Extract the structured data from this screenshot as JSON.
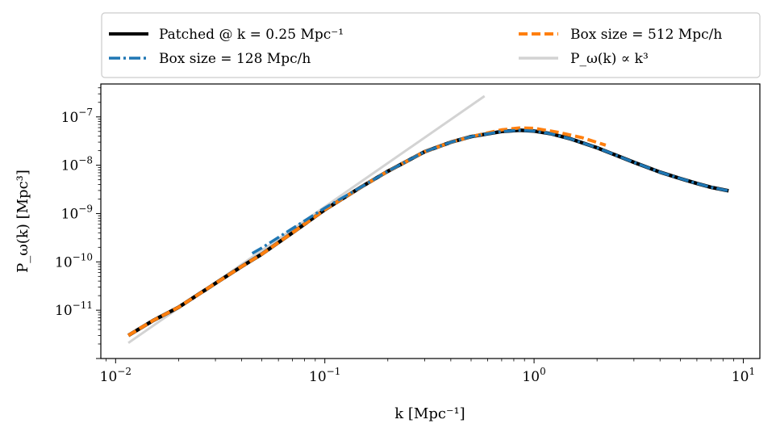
{
  "chart_data": {
    "type": "line",
    "xscale": "log",
    "yscale": "log",
    "xlim": [
      0.0085,
      12
    ],
    "ylim": [
      1e-12,
      4.8e-07
    ],
    "xlabel": "k [Mpc⁻¹]",
    "ylabel": "P_ω(k) [Mpc³]",
    "x_ticks": [
      {
        "value": 0.01,
        "base": "10",
        "exp": "−2"
      },
      {
        "value": 0.1,
        "base": "10",
        "exp": "−1"
      },
      {
        "value": 1,
        "base": "10",
        "exp": "0"
      },
      {
        "value": 10,
        "base": "10",
        "exp": "1"
      }
    ],
    "y_ticks": [
      {
        "value": 1e-11,
        "base": "10",
        "exp": "−11"
      },
      {
        "value": 1e-10,
        "base": "10",
        "exp": "−10"
      },
      {
        "value": 1e-09,
        "base": "10",
        "exp": "−9"
      },
      {
        "value": 1e-08,
        "base": "10",
        "exp": "−8"
      },
      {
        "value": 1e-07,
        "base": "10",
        "exp": "−7"
      }
    ],
    "legend": {
      "placement": "top",
      "entries": [
        {
          "label": "Patched @ k = 0.25 Mpc⁻¹",
          "series": "patched"
        },
        {
          "label": "Box size = 128 Mpc/h",
          "series": "box128"
        },
        {
          "label": "Box size = 512 Mpc/h",
          "series": "box512"
        },
        {
          "label": "P_ω(k) ∝ k³",
          "series": "k3"
        }
      ]
    },
    "series": [
      {
        "id": "k3",
        "name": "P_ω(k) ∝ k³",
        "color": "#d3d3d3",
        "style": "solid",
        "x": [
          0.0115,
          0.58
        ],
        "y": [
          2.1e-12,
          2.7e-07
        ]
      },
      {
        "id": "patched",
        "name": "Patched @ k = 0.25 Mpc⁻¹",
        "color": "#000000",
        "style": "solid",
        "x": [
          0.0115,
          0.015,
          0.02,
          0.03,
          0.04,
          0.05,
          0.07,
          0.1,
          0.15,
          0.2,
          0.3,
          0.4,
          0.5,
          0.7,
          0.85,
          1.0,
          1.2,
          1.5,
          2.0,
          3.0,
          4.0,
          5.0,
          6.0,
          7.0,
          8.5
        ],
        "y": [
          3e-12,
          6e-12,
          1.15e-11,
          3.6e-11,
          8e-11,
          1.45e-10,
          4e-10,
          1.2e-09,
          3.6e-09,
          7.5e-09,
          1.9e-08,
          3e-08,
          3.9e-08,
          5e-08,
          5.3e-08,
          5.1e-08,
          4.5e-08,
          3.5e-08,
          2.3e-08,
          1.15e-08,
          7.2e-09,
          5.3e-09,
          4.2e-09,
          3.5e-09,
          2.95e-09
        ]
      },
      {
        "id": "box128",
        "name": "Box size = 128 Mpc/h",
        "color": "#1f77b4",
        "style": "dashdot",
        "x": [
          0.045,
          0.05,
          0.07,
          0.1,
          0.15,
          0.2,
          0.3,
          0.4,
          0.5,
          0.7,
          0.85,
          1.0,
          1.2,
          1.5,
          2.0,
          3.0,
          4.0,
          5.0,
          6.0,
          7.0,
          8.5
        ],
        "y": [
          1.5e-10,
          1.95e-10,
          4.9e-10,
          1.3e-09,
          3.6e-09,
          7.5e-09,
          1.9e-08,
          3e-08,
          3.9e-08,
          5e-08,
          5.3e-08,
          5.1e-08,
          4.5e-08,
          3.5e-08,
          2.3e-08,
          1.15e-08,
          7.2e-09,
          5.3e-09,
          4.2e-09,
          3.5e-09,
          2.95e-09
        ]
      },
      {
        "id": "box512",
        "name": "Box size = 512 Mpc/h",
        "color": "#ff7f0e",
        "style": "dashed",
        "x": [
          0.0115,
          0.015,
          0.02,
          0.03,
          0.04,
          0.05,
          0.07,
          0.1,
          0.15,
          0.2,
          0.3,
          0.4,
          0.5,
          0.7,
          0.85,
          1.0,
          1.3,
          1.7,
          2.2
        ],
        "y": [
          3e-12,
          6e-12,
          1.15e-11,
          3.6e-11,
          8e-11,
          1.45e-10,
          4e-10,
          1.2e-09,
          3.6e-09,
          7.5e-09,
          1.9e-08,
          3e-08,
          3.9e-08,
          5.4e-08,
          5.9e-08,
          5.8e-08,
          4.8e-08,
          3.7e-08,
          2.6e-08
        ]
      }
    ]
  }
}
